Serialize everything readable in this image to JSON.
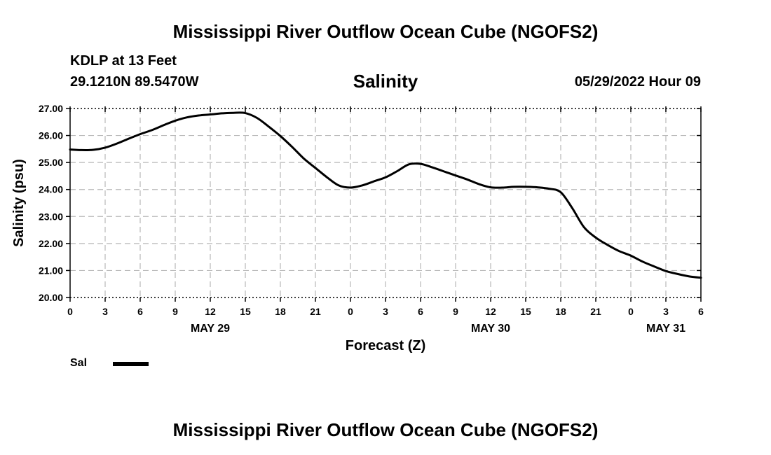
{
  "header": {
    "title": "Mississippi River Outflow Ocean Cube (NGOFS2)",
    "station": "KDLP at 13 Feet",
    "coords": "29.1210N  89.5470W",
    "parameter": "Salinity",
    "datetime": "05/29/2022 Hour 09"
  },
  "footer": {
    "title": "Mississippi River Outflow Ocean Cube (NGOFS2)"
  },
  "legend": {
    "label": "Sal",
    "color": "#000000"
  },
  "chart_data": {
    "type": "line",
    "ylabel": "Salinity (psu)",
    "xlabel": "Forecast (Z)",
    "ylim": [
      20.0,
      27.0
    ],
    "yticks": [
      "20.00",
      "21.00",
      "22.00",
      "23.00",
      "24.00",
      "25.00",
      "26.00",
      "27.00"
    ],
    "xlim": [
      0,
      54
    ],
    "xtick_labels": [
      "0",
      "3",
      "6",
      "9",
      "12",
      "15",
      "18",
      "21",
      "0",
      "3",
      "6",
      "9",
      "12",
      "15",
      "18",
      "21",
      "0",
      "3",
      "6"
    ],
    "date_labels": [
      {
        "label": "MAY 29",
        "hour": 12
      },
      {
        "label": "MAY 30",
        "hour": 36
      },
      {
        "label": "MAY 31",
        "hour": 51
      }
    ],
    "grid": true,
    "series": [
      {
        "name": "Sal",
        "color": "#000000",
        "x": [
          0,
          1,
          2,
          3,
          4,
          5,
          6,
          7,
          8,
          9,
          10,
          11,
          12,
          13,
          14,
          15,
          16,
          17,
          18,
          19,
          20,
          21,
          22,
          23,
          24,
          25,
          26,
          27,
          28,
          29,
          30,
          31,
          32,
          33,
          34,
          35,
          36,
          37,
          38,
          39,
          40,
          41,
          42,
          43,
          44,
          45,
          46,
          47,
          48,
          49,
          50,
          51,
          52,
          53,
          54
        ],
        "y": [
          25.48,
          25.46,
          25.47,
          25.55,
          25.7,
          25.88,
          26.05,
          26.2,
          26.38,
          26.55,
          26.67,
          26.74,
          26.78,
          26.82,
          26.84,
          26.83,
          26.65,
          26.33,
          25.98,
          25.58,
          25.15,
          24.8,
          24.45,
          24.15,
          24.07,
          24.15,
          24.3,
          24.45,
          24.68,
          24.93,
          24.95,
          24.82,
          24.67,
          24.52,
          24.37,
          24.2,
          24.08,
          24.07,
          24.1,
          24.1,
          24.08,
          24.03,
          23.9,
          23.3,
          22.6,
          22.22,
          21.95,
          21.72,
          21.55,
          21.33,
          21.15,
          20.98,
          20.87,
          20.78,
          20.73
        ]
      }
    ]
  }
}
